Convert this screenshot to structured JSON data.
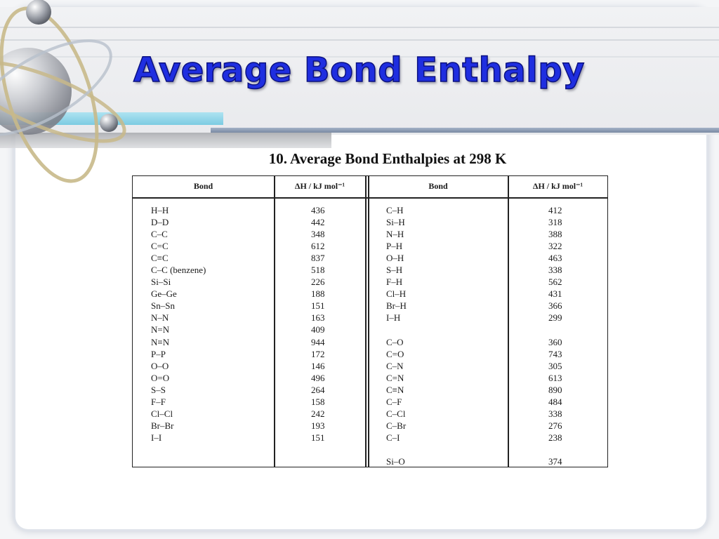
{
  "slide": {
    "title": "Average Bond Enthalpy"
  },
  "table": {
    "caption": "10. Average Bond Enthalpies at 298 K",
    "headers": {
      "bond_left": "Bond",
      "dh_left": "ΔH / kJ mol⁻¹",
      "bond_right": "Bond",
      "dh_right": "ΔH / kJ mol⁻¹"
    },
    "left_rows": [
      {
        "bond": "H–H",
        "value": "436"
      },
      {
        "bond": "D–D",
        "value": "442"
      },
      {
        "bond": "C–C",
        "value": "348"
      },
      {
        "bond": "C=C",
        "value": "612"
      },
      {
        "bond": "C≡C",
        "value": "837"
      },
      {
        "bond": "C–C (benzene)",
        "value": "518"
      },
      {
        "bond": "Si–Si",
        "value": "226"
      },
      {
        "bond": "Ge–Ge",
        "value": "188"
      },
      {
        "bond": "Sn–Sn",
        "value": "151"
      },
      {
        "bond": "N–N",
        "value": "163"
      },
      {
        "bond": "N=N",
        "value": "409"
      },
      {
        "bond": "N≡N",
        "value": "944"
      },
      {
        "bond": "P–P",
        "value": "172"
      },
      {
        "bond": "O–O",
        "value": "146"
      },
      {
        "bond": "O=O",
        "value": "496"
      },
      {
        "bond": "S–S",
        "value": "264"
      },
      {
        "bond": "F–F",
        "value": "158"
      },
      {
        "bond": "Cl–Cl",
        "value": "242"
      },
      {
        "bond": "Br–Br",
        "value": "193"
      },
      {
        "bond": "I–I",
        "value": "151"
      }
    ],
    "right_rows": [
      {
        "bond": "C–H",
        "value": "412"
      },
      {
        "bond": "Si–H",
        "value": "318"
      },
      {
        "bond": "N–H",
        "value": "388"
      },
      {
        "bond": "P–H",
        "value": "322"
      },
      {
        "bond": "O–H",
        "value": "463"
      },
      {
        "bond": "S–H",
        "value": "338"
      },
      {
        "bond": "F–H",
        "value": "562"
      },
      {
        "bond": "Cl–H",
        "value": "431"
      },
      {
        "bond": "Br–H",
        "value": "366"
      },
      {
        "bond": "I–H",
        "value": "299"
      },
      {
        "bond": "",
        "value": ""
      },
      {
        "bond": "C–O",
        "value": "360"
      },
      {
        "bond": "C=O",
        "value": "743"
      },
      {
        "bond": "C–N",
        "value": "305"
      },
      {
        "bond": "C=N",
        "value": "613"
      },
      {
        "bond": "C≡N",
        "value": "890"
      },
      {
        "bond": "C–F",
        "value": "484"
      },
      {
        "bond": "C–Cl",
        "value": "338"
      },
      {
        "bond": "C–Br",
        "value": "276"
      },
      {
        "bond": "C–I",
        "value": "238"
      },
      {
        "bond": "",
        "value": ""
      },
      {
        "bond": "Si–O",
        "value": "374"
      }
    ]
  },
  "theme": {
    "title_color": "#1f2ee0",
    "accent_blue": "#7ccbe2",
    "header_rule": "#7a8aa3",
    "decoration_icon": "atom-orbit-icon"
  }
}
